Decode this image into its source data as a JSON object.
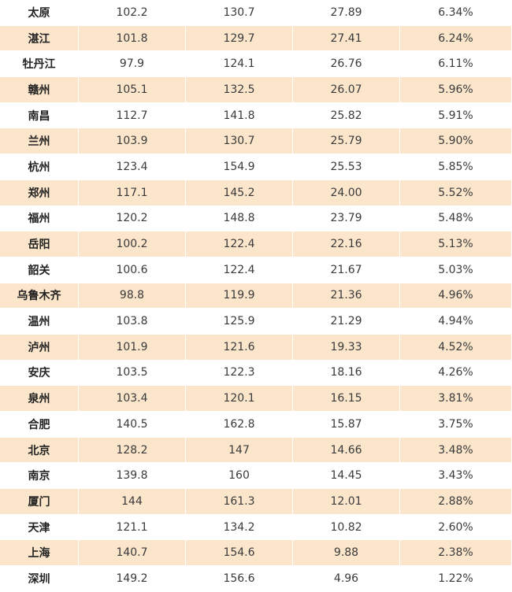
{
  "table": {
    "rows": [
      {
        "city": "太原",
        "c1": "102.2",
        "c2": "130.7",
        "c3": "27.89",
        "c4": "6.34%"
      },
      {
        "city": "湛江",
        "c1": "101.8",
        "c2": "129.7",
        "c3": "27.41",
        "c4": "6.24%"
      },
      {
        "city": "牡丹江",
        "c1": "97.9",
        "c2": "124.1",
        "c3": "26.76",
        "c4": "6.11%"
      },
      {
        "city": "赣州",
        "c1": "105.1",
        "c2": "132.5",
        "c3": "26.07",
        "c4": "5.96%"
      },
      {
        "city": "南昌",
        "c1": "112.7",
        "c2": "141.8",
        "c3": "25.82",
        "c4": "5.91%"
      },
      {
        "city": "兰州",
        "c1": "103.9",
        "c2": "130.7",
        "c3": "25.79",
        "c4": "5.90%"
      },
      {
        "city": "杭州",
        "c1": "123.4",
        "c2": "154.9",
        "c3": "25.53",
        "c4": "5.85%"
      },
      {
        "city": "郑州",
        "c1": "117.1",
        "c2": "145.2",
        "c3": "24.00",
        "c4": "5.52%"
      },
      {
        "city": "福州",
        "c1": "120.2",
        "c2": "148.8",
        "c3": "23.79",
        "c4": "5.48%"
      },
      {
        "city": "岳阳",
        "c1": "100.2",
        "c2": "122.4",
        "c3": "22.16",
        "c4": "5.13%"
      },
      {
        "city": "韶关",
        "c1": "100.6",
        "c2": "122.4",
        "c3": "21.67",
        "c4": "5.03%"
      },
      {
        "city": "乌鲁木齐",
        "c1": "98.8",
        "c2": "119.9",
        "c3": "21.36",
        "c4": "4.96%"
      },
      {
        "city": "温州",
        "c1": "103.8",
        "c2": "125.9",
        "c3": "21.29",
        "c4": "4.94%"
      },
      {
        "city": "泸州",
        "c1": "101.9",
        "c2": "121.6",
        "c3": "19.33",
        "c4": "4.52%"
      },
      {
        "city": "安庆",
        "c1": "103.5",
        "c2": "122.3",
        "c3": "18.16",
        "c4": "4.26%"
      },
      {
        "city": "泉州",
        "c1": "103.4",
        "c2": "120.1",
        "c3": "16.15",
        "c4": "3.81%"
      },
      {
        "city": "合肥",
        "c1": "140.5",
        "c2": "162.8",
        "c3": "15.87",
        "c4": "3.75%"
      },
      {
        "city": "北京",
        "c1": "128.2",
        "c2": "147",
        "c3": "14.66",
        "c4": "3.48%"
      },
      {
        "city": "南京",
        "c1": "139.8",
        "c2": "160",
        "c3": "14.45",
        "c4": "3.43%"
      },
      {
        "city": "厦门",
        "c1": "144",
        "c2": "161.3",
        "c3": "12.01",
        "c4": "2.88%"
      },
      {
        "city": "天津",
        "c1": "121.1",
        "c2": "134.2",
        "c3": "10.82",
        "c4": "2.60%"
      },
      {
        "city": "上海",
        "c1": "140.7",
        "c2": "154.6",
        "c3": "9.88",
        "c4": "2.38%"
      },
      {
        "city": "深圳",
        "c1": "149.2",
        "c2": "156.6",
        "c3": "4.96",
        "c4": "1.22%"
      }
    ]
  },
  "colors": {
    "shaded_row": "#fbe6cc",
    "plain_row": "#ffffff",
    "text": "#3a3a3a"
  }
}
